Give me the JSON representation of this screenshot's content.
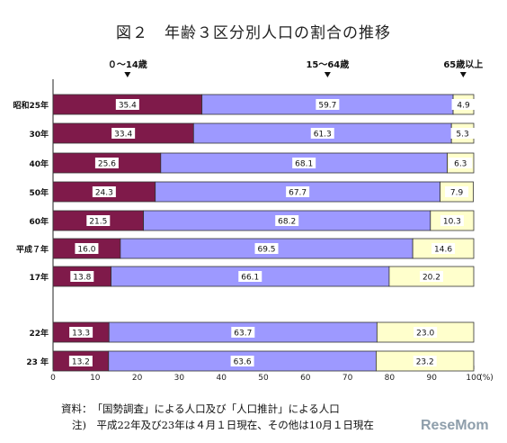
{
  "title": "図２　年齢３区分別人口の割合の推移",
  "source_note": "資料：　「国勢調査」による人口及び「人口推計」による人口",
  "footnote": "注)　平成22年及び23年は４月１日現在、その他は10月１日現在",
  "watermark_text": "ReseMom",
  "chart_data": {
    "type": "bar",
    "orientation": "horizontal",
    "stacked": true,
    "percent_axis": true,
    "categories": [
      "昭和25年",
      "30年",
      "40年",
      "50年",
      "60年",
      "平成７年",
      "17年",
      "22年",
      "23 年"
    ],
    "series": [
      {
        "name": "０～14歳",
        "color": "#7f1a4a",
        "labels": [
          "35.4",
          "33.4",
          "25.6",
          "24.3",
          "21.5",
          "16.0",
          "13.8",
          "13.3",
          "13.2"
        ],
        "values": [
          35.4,
          33.4,
          25.6,
          24.3,
          21.5,
          16.0,
          13.8,
          13.3,
          13.2
        ]
      },
      {
        "name": "15～64歳",
        "color": "#9d99ff",
        "labels": [
          "59.7",
          "61.3",
          "68.1",
          "67.7",
          "68.2",
          "69.5",
          "66.1",
          "63.7",
          "63.6"
        ],
        "values": [
          59.7,
          61.3,
          68.1,
          67.7,
          68.2,
          69.5,
          66.1,
          63.7,
          63.6
        ]
      },
      {
        "name": "65歳以上",
        "color": "#ffffcc",
        "labels": [
          "4.9",
          "5.3",
          "6.3",
          "7.9",
          "10.3",
          "14.6",
          "20.2",
          "23.0",
          "23.2"
        ],
        "values": [
          4.9,
          5.3,
          6.3,
          7.9,
          10.3,
          14.6,
          20.2,
          23.0,
          23.2
        ]
      }
    ],
    "xlim": [
      0,
      100
    ],
    "xticks": [
      0,
      10,
      20,
      30,
      40,
      50,
      60,
      70,
      80,
      90,
      100
    ],
    "x_unit": "(%)",
    "grid": false,
    "legend_placement": "top, with ▼ markers"
  }
}
